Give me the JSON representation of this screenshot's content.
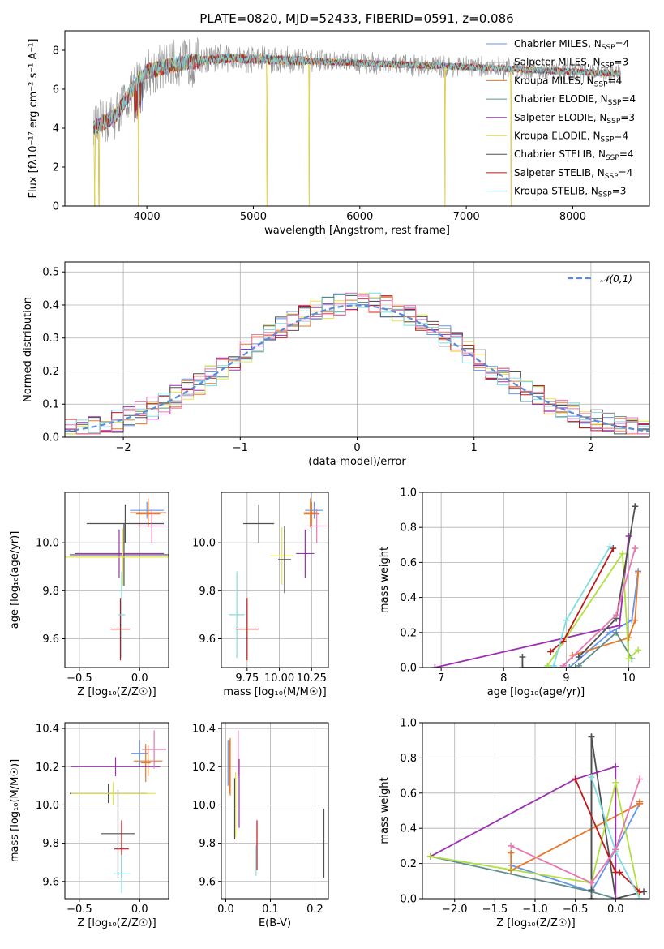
{
  "figure": {
    "title": "PLATE=0820, MJD=52433, FIBERID=0591, z=0.086"
  },
  "series_names": [
    "Chabrier MILES",
    "Salpeter MILES",
    "Kroupa MILES",
    "Chabrier ELODIE",
    "Salpeter ELODIE",
    "Kroupa ELODIE",
    "Chabrier STELIB",
    "Salpeter STELIB",
    "Kroupa STELIB"
  ],
  "series_colors": [
    "#6495ED",
    "#8B8B8B",
    "#E8792A",
    "#5F8F8F",
    "#9B30B0",
    "#E6E64C",
    "#505050",
    "#C01818",
    "#7FDDE0"
  ],
  "chart_data": [
    {
      "id": "spectrum",
      "type": "line",
      "xlabel": "wavelength [Angstrom, rest frame]",
      "ylabel": "Flux [fλ10⁻¹⁷ erg cm⁻² s⁻¹ A⁻¹]",
      "xlim": [
        3230,
        8720
      ],
      "ylim": [
        0,
        9
      ],
      "xticks": [
        4000,
        5000,
        6000,
        7000,
        8000
      ],
      "yticks": [
        0,
        2,
        4,
        6,
        8
      ],
      "legend_location": "right",
      "legend": [
        {
          "label": "Chabrier MILES, N",
          "sub": "SSP",
          "suffix": "=4"
        },
        {
          "label": "Salpeter MILES, N",
          "sub": "SSP",
          "suffix": "=3"
        },
        {
          "label": "Kroupa MILES, N",
          "sub": "SSP",
          "suffix": "=4"
        },
        {
          "label": "Chabrier ELODIE, N",
          "sub": "SSP",
          "suffix": "=4"
        },
        {
          "label": "Salpeter ELODIE, N",
          "sub": "SSP",
          "suffix": "=3"
        },
        {
          "label": "Kroupa ELODIE, N",
          "sub": "SSP",
          "suffix": "=4"
        },
        {
          "label": "Chabrier STELIB, N",
          "sub": "SSP",
          "suffix": "=4"
        },
        {
          "label": "Salpeter STELIB, N",
          "sub": "SSP",
          "suffix": "=4"
        },
        {
          "label": "Kroupa STELIB, N",
          "sub": "SSP",
          "suffix": "=3"
        }
      ],
      "continuum": {
        "x": [
          3500,
          3700,
          3900,
          4000,
          4200,
          4400,
          4600,
          4800,
          5000,
          5500,
          6000,
          6500,
          7000,
          7400,
          7800,
          8200,
          8450
        ],
        "y": [
          4.0,
          4.6,
          6.3,
          6.9,
          7.2,
          7.4,
          7.5,
          7.6,
          7.55,
          7.45,
          7.35,
          7.25,
          7.15,
          7.05,
          6.95,
          6.85,
          6.8
        ]
      },
      "dropouts": [
        3510,
        3550,
        3920,
        5130,
        5525,
        6800,
        7420
      ]
    },
    {
      "id": "residuals",
      "type": "step-histogram",
      "xlabel": "(data-model)/error",
      "ylabel": "Normed distribution",
      "xlim": [
        -2.5,
        2.5
      ],
      "ylim": [
        0,
        0.53
      ],
      "xticks": [
        -2,
        -1,
        0,
        1,
        2
      ],
      "yticks": [
        0.0,
        0.1,
        0.2,
        0.3,
        0.4,
        0.5
      ],
      "grid": true,
      "legend": "𝒩(0,1)",
      "legend_location": "top-right",
      "bin_width": 0.1
    },
    {
      "id": "age-vs-Z",
      "type": "errorbar",
      "xlabel": "Z [log₁₀(Z/Z☉)]",
      "ylabel": "age  [log₁₀(age/yr)]",
      "xlim": [
        -0.62,
        0.24
      ],
      "ylim": [
        9.48,
        10.21
      ],
      "xticks": [
        -0.5,
        0.0
      ],
      "yticks": [
        9.6,
        9.8,
        10.0
      ],
      "grid": true,
      "points": [
        {
          "x": 0.06,
          "y": 10.135,
          "xerr": 0.14,
          "yerr": 0.035
        },
        {
          "x": 0.07,
          "y": 10.12,
          "xerr": 0.1,
          "yerr": 0.05
        },
        {
          "x": 0.07,
          "y": 10.125,
          "xerr": 0.15,
          "yerr": 0.06
        },
        {
          "x": -0.13,
          "y": 9.95,
          "xerr": 0.45,
          "yerr": 0.13
        },
        {
          "x": -0.17,
          "y": 9.955,
          "xerr": 0.37,
          "yerr": 0.1
        },
        {
          "x": -0.14,
          "y": 9.94,
          "xerr": 0.5,
          "yerr": 0.12
        },
        {
          "x": -0.12,
          "y": 10.08,
          "xerr": 0.32,
          "yerr": 0.08
        },
        {
          "x": -0.16,
          "y": 9.64,
          "xerr": 0.08,
          "yerr": 0.13
        },
        {
          "x": -0.15,
          "y": 9.7,
          "xerr": 0.03,
          "yerr": 0.18
        },
        {
          "x": 0.1,
          "y": 10.07,
          "xerr": 0.12,
          "yerr": 0.07
        }
      ]
    },
    {
      "id": "age-vs-mass",
      "type": "errorbar",
      "xlabel": "mass [log₁₀(M/M☉)]",
      "xlim": [
        9.55,
        10.38
      ],
      "ylim": [
        9.48,
        10.21
      ],
      "xticks": [
        9.75,
        10.0,
        10.25
      ],
      "xticklabels": [
        "9.75",
        "10.00",
        "10.25"
      ],
      "yticks": [
        9.6,
        9.8,
        10.0
      ],
      "grid": true,
      "points": [
        {
          "x": 10.27,
          "y": 10.135,
          "xerr": 0.07,
          "yerr": 0.035
        },
        {
          "x": 10.25,
          "y": 10.12,
          "xerr": 0.06,
          "yerr": 0.05
        },
        {
          "x": 10.24,
          "y": 10.125,
          "xerr": 0.05,
          "yerr": 0.06
        },
        {
          "x": 9.84,
          "y": 10.08,
          "xerr": 0.12,
          "yerr": 0.08
        },
        {
          "x": 10.2,
          "y": 9.955,
          "xerr": 0.07,
          "yerr": 0.1
        },
        {
          "x": 10.02,
          "y": 9.945,
          "xerr": 0.09,
          "yerr": 0.12
        },
        {
          "x": 10.04,
          "y": 9.93,
          "xerr": 0.05,
          "yerr": 0.14
        },
        {
          "x": 9.75,
          "y": 9.64,
          "xerr": 0.09,
          "yerr": 0.13
        },
        {
          "x": 9.67,
          "y": 9.7,
          "xerr": 0.06,
          "yerr": 0.18
        },
        {
          "x": 10.29,
          "y": 10.07,
          "xerr": 0.08,
          "yerr": 0.07
        }
      ]
    },
    {
      "id": "massweight-vs-age",
      "type": "line",
      "xlabel": "age  [log₁₀(age/yr)]",
      "ylabel": "mass weight",
      "xlim": [
        6.7,
        10.33
      ],
      "ylim": [
        0.0,
        1.0
      ],
      "xticks": [
        7,
        8,
        9,
        10
      ],
      "yticks": [
        0.0,
        0.2,
        0.4,
        0.6,
        0.8,
        1.0
      ],
      "grid": true,
      "lines": [
        {
          "x": [
            9.05,
            9.7,
            10.05,
            10.15
          ],
          "y": [
            0.0,
            0.2,
            0.27,
            0.55
          ]
        },
        {
          "x": [
            8.3,
            8.3,
            9.15
          ],
          "y": [
            0.06,
            0.0,
            0.0
          ]
        },
        {
          "x": [
            9.1,
            10.0,
            10.1,
            10.15
          ],
          "y": [
            0.07,
            0.17,
            0.27,
            0.54
          ]
        },
        {
          "x": [
            9.2,
            9.8,
            10.05
          ],
          "y": [
            0.01,
            0.2,
            0.05
          ]
        },
        {
          "x": [
            6.9,
            9.85,
            10.0
          ],
          "y": [
            0.0,
            0.24,
            0.75
          ]
        },
        {
          "x": [
            8.7,
            9.9,
            10.0,
            10.15
          ],
          "y": [
            0.01,
            0.65,
            0.05,
            0.1
          ]
        },
        {
          "x": [
            9.2,
            9.8,
            10.1
          ],
          "y": [
            0.06,
            0.28,
            0.92
          ]
        },
        {
          "x": [
            8.75,
            8.95,
            9.75
          ],
          "y": [
            0.09,
            0.15,
            0.68
          ]
        },
        {
          "x": [
            8.8,
            9.0,
            9.7
          ],
          "y": [
            0.01,
            0.27,
            0.69
          ]
        },
        {
          "x": [
            8.95,
            9.8,
            10.1
          ],
          "y": [
            0.01,
            0.3,
            0.68
          ]
        }
      ]
    },
    {
      "id": "mass-vs-Z",
      "type": "errorbar",
      "xlabel": "Z [log₁₀(Z/Z☉)]",
      "ylabel": "mass [log₁₀(M/M☉)]",
      "xlim": [
        -0.62,
        0.24
      ],
      "ylim": [
        9.51,
        10.43
      ],
      "xticks": [
        -0.5,
        0.0
      ],
      "yticks": [
        9.6,
        9.8,
        10.0,
        10.2,
        10.4
      ],
      "grid": true,
      "points": [
        {
          "x": 0.0,
          "y": 10.27,
          "xerr": 0.07,
          "yerr": 0.07
        },
        {
          "x": 0.05,
          "y": 10.22,
          "xerr": 0.04,
          "yerr": 0.1
        },
        {
          "x": 0.07,
          "y": 10.23,
          "xerr": 0.12,
          "yerr": 0.08
        },
        {
          "x": -0.26,
          "y": 10.06,
          "xerr": 0.32,
          "yerr": 0.05
        },
        {
          "x": -0.2,
          "y": 10.2,
          "xerr": 0.37,
          "yerr": 0.05
        },
        {
          "x": -0.22,
          "y": 10.06,
          "xerr": 0.35,
          "yerr": 0.06
        },
        {
          "x": -0.18,
          "y": 9.85,
          "xerr": 0.14,
          "yerr": 0.23
        },
        {
          "x": -0.15,
          "y": 9.77,
          "xerr": 0.06,
          "yerr": 0.15
        },
        {
          "x": -0.15,
          "y": 9.64,
          "xerr": 0.07,
          "yerr": 0.1
        },
        {
          "x": 0.12,
          "y": 10.29,
          "xerr": 0.1,
          "yerr": 0.1
        }
      ]
    },
    {
      "id": "mass-vs-EBV",
      "type": "errorbar",
      "xlabel": "E(B-V)",
      "xlim": [
        -0.01,
        0.23
      ],
      "ylim": [
        9.51,
        10.43
      ],
      "xticks": [
        0.0,
        0.1,
        0.2
      ],
      "yticks": [
        9.6,
        9.8,
        10.0,
        10.2,
        10.4
      ],
      "grid": true,
      "points": [
        {
          "x": 0.005,
          "y": 10.22,
          "xerr": 0.0,
          "yerr": 0.12
        },
        {
          "x": 0.008,
          "y": 10.2,
          "xerr": 0.0,
          "yerr": 0.14
        },
        {
          "x": 0.01,
          "y": 10.2,
          "xerr": 0.0,
          "yerr": 0.15
        },
        {
          "x": 0.02,
          "y": 9.98,
          "xerr": 0.0,
          "yerr": 0.16
        },
        {
          "x": 0.03,
          "y": 10.06,
          "xerr": 0.0,
          "yerr": 0.18
        },
        {
          "x": 0.022,
          "y": 10.0,
          "xerr": 0.0,
          "yerr": 0.17
        },
        {
          "x": 0.22,
          "y": 9.8,
          "xerr": 0.0,
          "yerr": 0.18
        },
        {
          "x": 0.07,
          "y": 9.79,
          "xerr": 0.0,
          "yerr": 0.13
        },
        {
          "x": 0.068,
          "y": 9.71,
          "xerr": 0.0,
          "yerr": 0.08
        },
        {
          "x": 0.028,
          "y": 10.27,
          "xerr": 0.0,
          "yerr": 0.12
        }
      ]
    },
    {
      "id": "massweight-vs-Z",
      "type": "line",
      "xlabel": "Z [log₁₀(Z/Z☉)]",
      "ylabel": "mass weight",
      "xlim": [
        -2.4,
        0.42
      ],
      "ylim": [
        0.0,
        1.0
      ],
      "xticks": [
        -2.0,
        -1.5,
        -1.0,
        -0.5,
        0.0
      ],
      "xticklabels": [
        "−2.0",
        "−1.5",
        "−1.0",
        "−0.5",
        "0.0"
      ],
      "yticks": [
        0.0,
        0.2,
        0.4,
        0.6,
        0.8,
        1.0
      ],
      "grid": true,
      "lines": [
        {
          "x": [
            -1.3,
            -0.3,
            0.0,
            0.3
          ],
          "y": [
            0.19,
            0.04,
            0.28,
            0.54
          ]
        },
        {
          "x": [
            -0.3,
            -0.3,
            0.0,
            0.35
          ],
          "y": [
            0.0,
            0.92,
            0.0,
            0.04
          ]
        },
        {
          "x": [
            -1.3,
            -1.3,
            0.3,
            0.3
          ],
          "y": [
            0.26,
            0.16,
            0.54,
            0.55
          ]
        },
        {
          "x": [
            -2.3,
            -0.3,
            0.0
          ],
          "y": [
            0.24,
            0.04,
            0.0
          ]
        },
        {
          "x": [
            -2.3,
            -0.5,
            0.0,
            0.0
          ],
          "y": [
            0.24,
            0.68,
            0.75,
            0.0
          ]
        },
        {
          "x": [
            -2.3,
            -0.3,
            0.0,
            0.3
          ],
          "y": [
            0.24,
            0.09,
            0.66,
            0.0
          ]
        },
        {
          "x": [
            -0.3,
            -0.3
          ],
          "y": [
            0.92,
            0.05
          ]
        },
        {
          "x": [
            -0.5,
            0.0,
            0.05,
            0.3
          ],
          "y": [
            0.68,
            0.15,
            0.15,
            0.04
          ]
        },
        {
          "x": [
            -0.3,
            0.0,
            0.3
          ],
          "y": [
            0.69,
            0.27,
            0.0
          ]
        },
        {
          "x": [
            -1.3,
            -0.3,
            0.0,
            0.3
          ],
          "y": [
            0.3,
            0.09,
            0.28,
            0.68
          ]
        }
      ]
    }
  ]
}
